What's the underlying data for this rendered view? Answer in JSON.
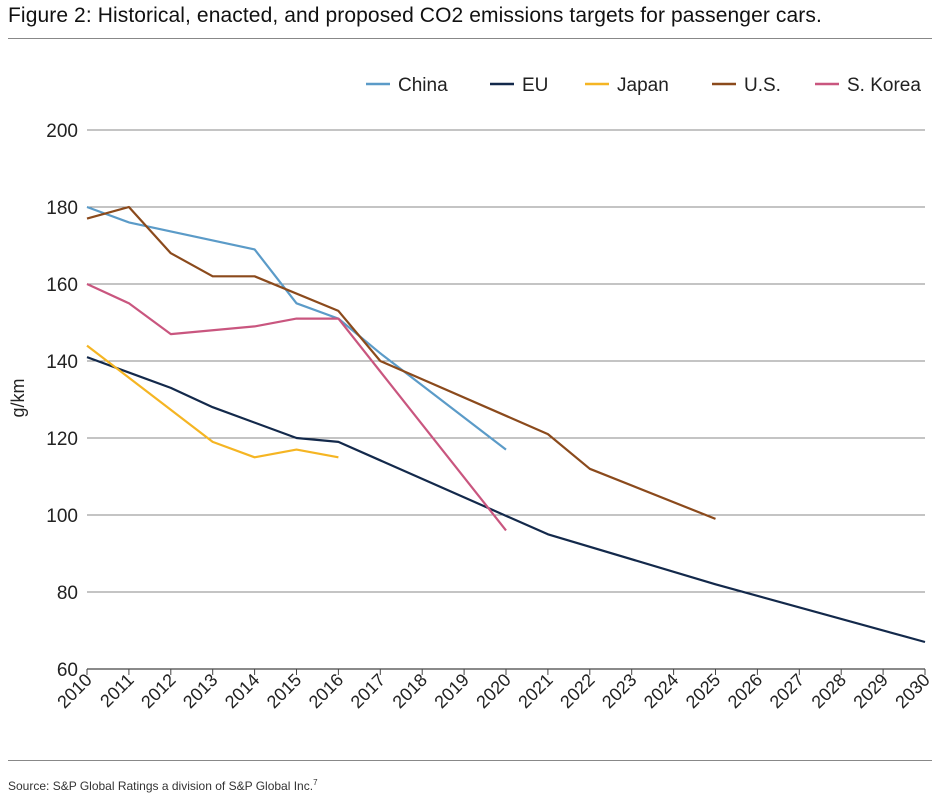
{
  "title": "Figure 2: Historical, enacted, and proposed CO2 emissions targets for passenger cars.",
  "source": "Source: S&P Global Ratings  a division of S&P Global Inc.",
  "source_footnote": "7",
  "chart_data": {
    "type": "line",
    "title": "Figure 2: Historical, enacted, and proposed CO2 emissions targets for passenger cars.",
    "xlabel": "",
    "ylabel": "g/km",
    "xlim": [
      2010,
      2030
    ],
    "ylim": [
      60,
      200
    ],
    "yticks": [
      60,
      80,
      100,
      120,
      140,
      160,
      180,
      200
    ],
    "xticks": [
      2010,
      2011,
      2012,
      2013,
      2014,
      2015,
      2016,
      2017,
      2018,
      2019,
      2020,
      2021,
      2022,
      2023,
      2024,
      2025,
      2026,
      2027,
      2028,
      2029,
      2030
    ],
    "grid": "horizontal",
    "legend_position": "top",
    "series": [
      {
        "name": "China",
        "color": "#5b9bc8",
        "points": [
          [
            2010,
            180
          ],
          [
            2011,
            176
          ],
          [
            2014,
            169
          ],
          [
            2015,
            155
          ],
          [
            2016,
            151
          ],
          [
            2017,
            142
          ],
          [
            2020,
            117
          ]
        ]
      },
      {
        "name": "EU",
        "color": "#13294b",
        "points": [
          [
            2010,
            141
          ],
          [
            2012,
            133
          ],
          [
            2013,
            128
          ],
          [
            2015,
            120
          ],
          [
            2016,
            119
          ],
          [
            2021,
            95
          ],
          [
            2025,
            82
          ],
          [
            2030,
            67
          ]
        ]
      },
      {
        "name": "Japan",
        "color": "#f5b523",
        "points": [
          [
            2010,
            144
          ],
          [
            2013,
            119
          ],
          [
            2014,
            115
          ],
          [
            2015,
            117
          ],
          [
            2016,
            115
          ]
        ]
      },
      {
        "name": "U.S.",
        "color": "#8b4a1c",
        "points": [
          [
            2010,
            177
          ],
          [
            2011,
            180
          ],
          [
            2012,
            168
          ],
          [
            2013,
            162
          ],
          [
            2014,
            162
          ],
          [
            2016,
            153
          ],
          [
            2017,
            140
          ],
          [
            2021,
            121
          ],
          [
            2022,
            112
          ],
          [
            2025,
            99
          ]
        ]
      },
      {
        "name": "S. Korea",
        "color": "#c9567f",
        "points": [
          [
            2010,
            160
          ],
          [
            2011,
            155
          ],
          [
            2012,
            147
          ],
          [
            2014,
            149
          ],
          [
            2015,
            151
          ],
          [
            2016,
            151
          ],
          [
            2020,
            96
          ]
        ]
      }
    ]
  }
}
